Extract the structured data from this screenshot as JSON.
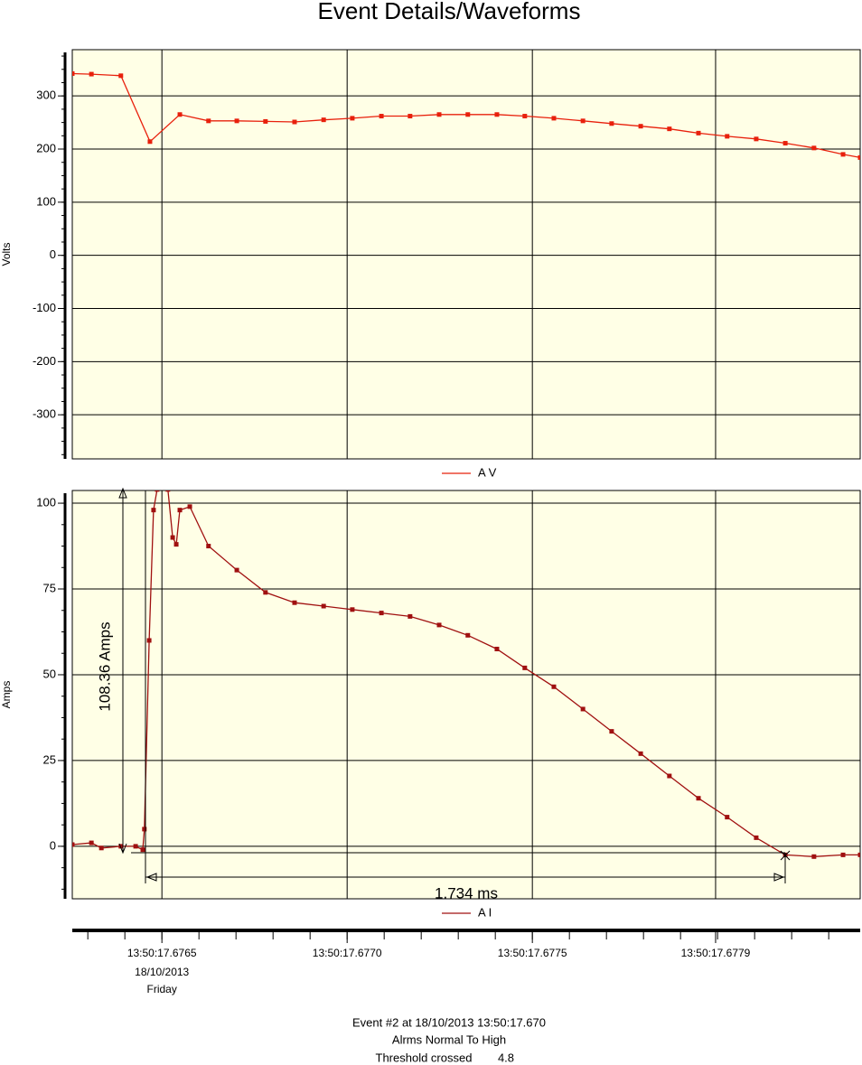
{
  "title": "Event Details/Waveforms",
  "chart_data": [
    {
      "type": "line",
      "ylabel": "Volts",
      "grid": true,
      "xlim": [
        17.676315,
        17.678293
      ],
      "xticks": [
        17.67654,
        17.677005,
        17.67747,
        17.67793
      ],
      "ylim": [
        -383,
        387
      ],
      "yticks": [
        -300,
        -200,
        -100,
        0,
        100,
        200,
        300
      ],
      "x": [
        17.676315,
        17.676363,
        17.676437,
        17.67651,
        17.676585,
        17.676657,
        17.676728,
        17.6768,
        17.676873,
        17.676946,
        17.677018,
        17.677091,
        17.677163,
        17.677236,
        17.677308,
        17.677381,
        17.677451,
        17.677524,
        17.677597,
        17.677669,
        17.677742,
        17.677814,
        17.677887,
        17.677959,
        17.678032,
        17.678105,
        17.678177,
        17.67825,
        17.678293
      ],
      "series": [
        {
          "name": "A V",
          "color": "#e8200c",
          "values": [
            342,
            341,
            338,
            214,
            265,
            253,
            253,
            252,
            251,
            255,
            258,
            262,
            262,
            265,
            265,
            265,
            262,
            258,
            253,
            248,
            243,
            238,
            230,
            224,
            219,
            211,
            202,
            190,
            184
          ]
        }
      ]
    },
    {
      "type": "line",
      "ylabel": "Amps",
      "grid": true,
      "xlim": [
        17.676315,
        17.678293
      ],
      "xticks": [
        {
          "value": 17.67654,
          "label": "13:50:17.6765"
        },
        {
          "value": 17.677005,
          "label": "13:50:17.6770"
        },
        {
          "value": 17.67747,
          "label": "13:50:17.6775"
        },
        {
          "value": 17.67793,
          "label": "13:50:17.6779"
        }
      ],
      "date_label": "18/10/2013",
      "day_label": "Friday",
      "ylim": [
        -15.3,
        103.7
      ],
      "yticks": [
        0,
        25,
        50,
        75,
        100
      ],
      "x": [
        17.676315,
        17.676363,
        17.676388,
        17.676437,
        17.676474,
        17.676492,
        17.676496,
        17.676508,
        17.676519,
        17.676528,
        17.676555,
        17.676567,
        17.676576,
        17.676585,
        17.67661,
        17.676657,
        17.676728,
        17.6768,
        17.676873,
        17.676946,
        17.677018,
        17.677091,
        17.677163,
        17.677236,
        17.677308,
        17.677381,
        17.677451,
        17.677524,
        17.677597,
        17.677669,
        17.677742,
        17.677814,
        17.677887,
        17.677959,
        17.678032,
        17.678105,
        17.678177,
        17.67825,
        17.678293
      ],
      "series": [
        {
          "name": "A I",
          "color": "#a01010",
          "values": [
            0.5,
            1,
            -0.5,
            0,
            0,
            -1,
            5,
            60,
            98,
            104,
            104,
            90,
            88,
            98,
            99,
            87.5,
            80.5,
            74,
            71,
            70,
            69,
            68,
            67,
            64.5,
            61.5,
            57.5,
            52,
            46.5,
            40,
            33.5,
            27,
            20.5,
            14,
            8.5,
            2.5,
            -2.5,
            -3,
            -2.5,
            -2.5
          ]
        }
      ],
      "annotations": [
        {
          "text": "108.36 Amps"
        },
        {
          "text": "1.734 ms"
        }
      ]
    }
  ],
  "footer": {
    "event": "Event #2 at 18/10/2013 13:50:17.670",
    "alarm": "Alrms Normal To High",
    "threshold_label": "Threshold crossed",
    "threshold": 4.8
  }
}
